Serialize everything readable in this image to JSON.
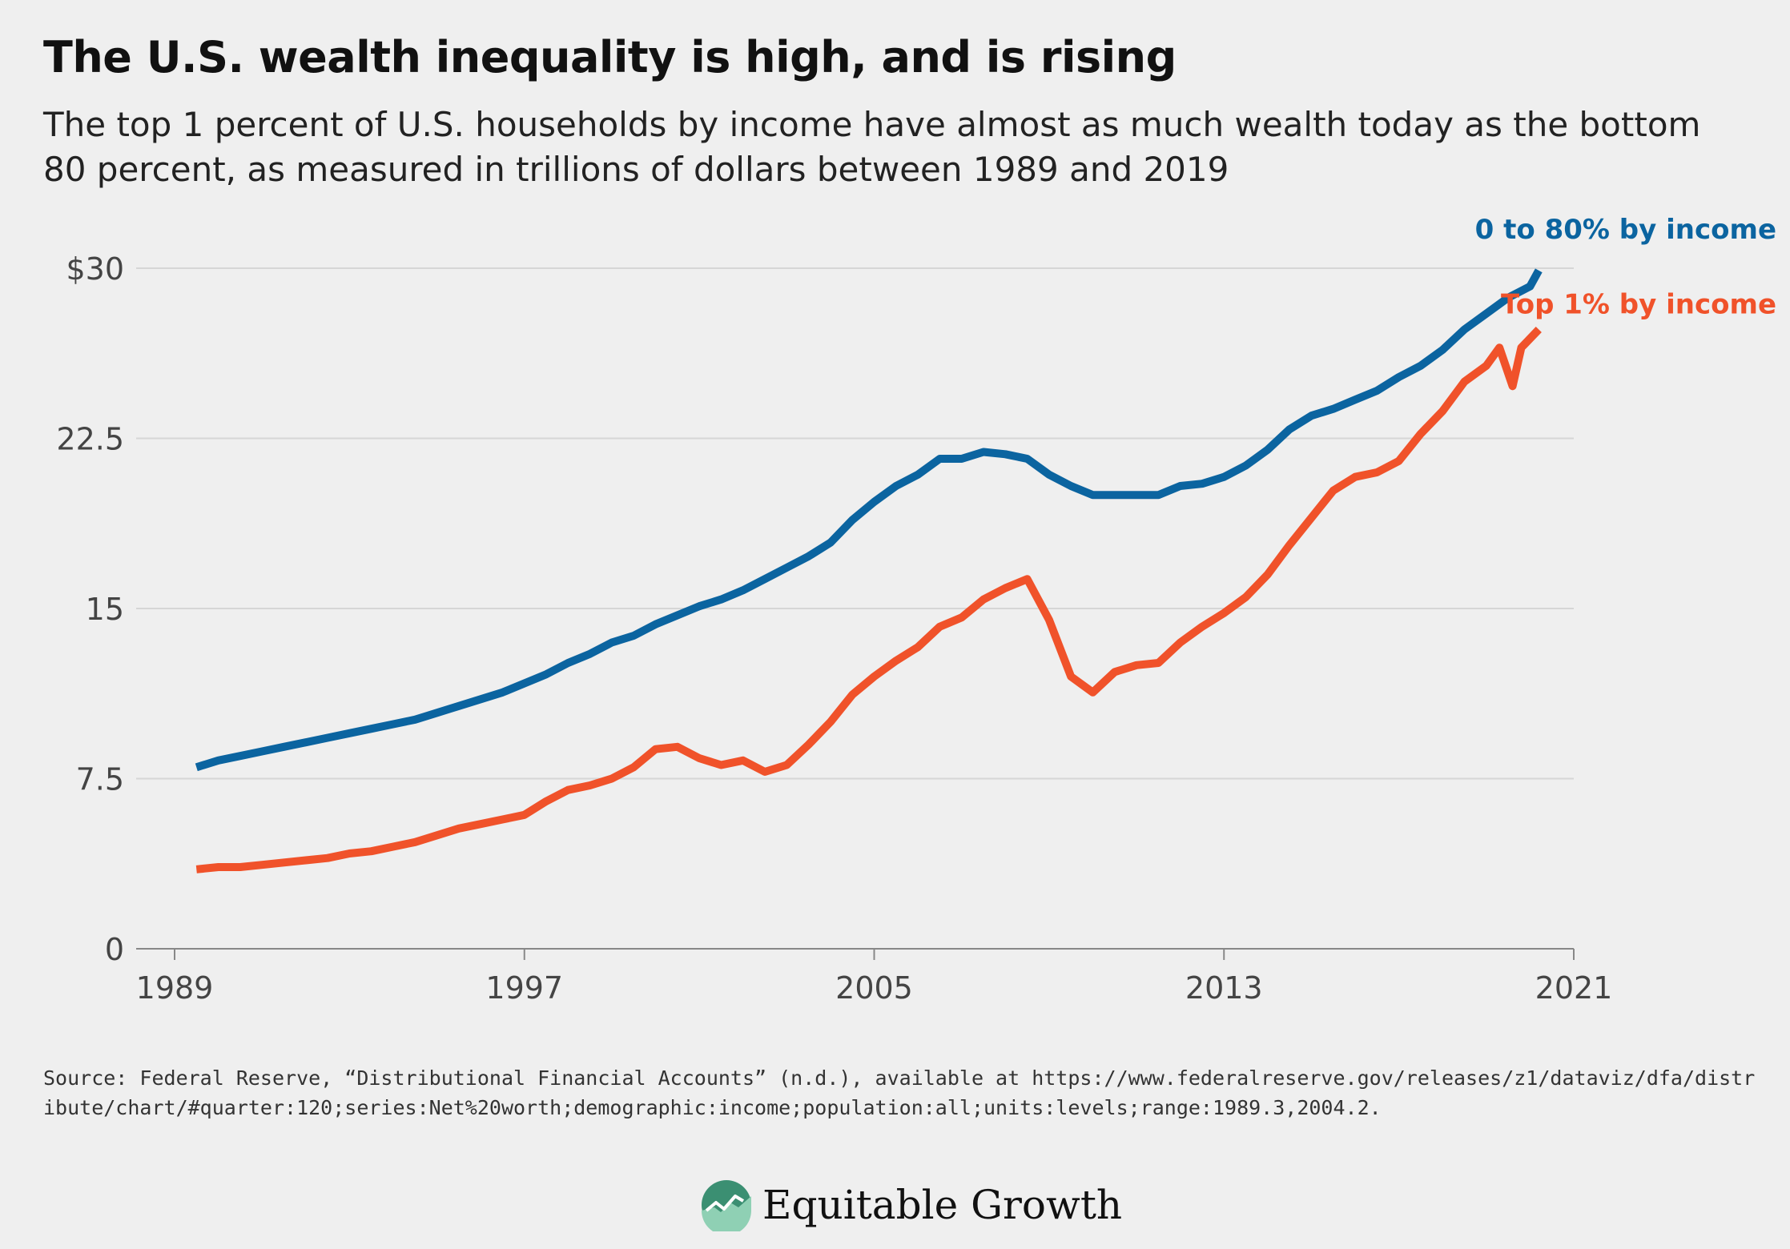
{
  "title": "The U.S. wealth inequality is high, and is rising",
  "subtitle": "The top 1 percent of U.S. households by income have almost as much wealth today as the bottom 80 percent, as measured in trillions of dollars between 1989 and 2019",
  "source": "Source: Federal Reserve, “Distributional Financial Accounts” (n.d.), available at https://www.federalreserve.gov/releases/z1/dataviz/dfa/distribute/chart/#quarter:120;series:Net%20worth;demographic:income;population:all;units:levels;range:1989.3,2004.2.",
  "logo": {
    "text": "Equitable Growth"
  },
  "colors": {
    "bottom80": "#0b64a0",
    "top1": "#f0522a",
    "grid": "#d6d6d6",
    "axis": "#888888"
  },
  "chart_data": {
    "type": "line",
    "title": "",
    "xlabel": "",
    "ylabel": "",
    "xlim": [
      1989,
      2021
    ],
    "ylim": [
      0,
      30
    ],
    "grid": true,
    "x_ticks": [
      {
        "value": 1989,
        "label": "1989"
      },
      {
        "value": 1997,
        "label": "1997"
      },
      {
        "value": 2005,
        "label": "2005"
      },
      {
        "value": 2013,
        "label": "2013"
      },
      {
        "value": 2021,
        "label": "2021"
      }
    ],
    "y_ticks": [
      {
        "value": 0,
        "label": "0"
      },
      {
        "value": 7.5,
        "label": "7.5"
      },
      {
        "value": 15,
        "label": "15"
      },
      {
        "value": 22.5,
        "label": "22.5"
      },
      {
        "value": 30,
        "label": "$30"
      }
    ],
    "series": [
      {
        "name": "0 to 80% by income",
        "color": "#0b64a0",
        "points": [
          [
            1989.5,
            8.0
          ],
          [
            1990.0,
            8.3
          ],
          [
            1990.5,
            8.5
          ],
          [
            1991.0,
            8.7
          ],
          [
            1991.5,
            8.9
          ],
          [
            1992.0,
            9.1
          ],
          [
            1992.5,
            9.3
          ],
          [
            1993.0,
            9.5
          ],
          [
            1993.5,
            9.7
          ],
          [
            1994.0,
            9.9
          ],
          [
            1994.5,
            10.1
          ],
          [
            1995.0,
            10.4
          ],
          [
            1995.5,
            10.7
          ],
          [
            1996.0,
            11.0
          ],
          [
            1996.5,
            11.3
          ],
          [
            1997.0,
            11.7
          ],
          [
            1997.5,
            12.1
          ],
          [
            1998.0,
            12.6
          ],
          [
            1998.5,
            13.0
          ],
          [
            1999.0,
            13.5
          ],
          [
            1999.5,
            13.8
          ],
          [
            2000.0,
            14.3
          ],
          [
            2000.5,
            14.7
          ],
          [
            2001.0,
            15.1
          ],
          [
            2001.5,
            15.4
          ],
          [
            2002.0,
            15.8
          ],
          [
            2002.5,
            16.3
          ],
          [
            2003.0,
            16.8
          ],
          [
            2003.5,
            17.3
          ],
          [
            2004.0,
            17.9
          ],
          [
            2004.5,
            18.9
          ],
          [
            2005.0,
            19.7
          ],
          [
            2005.5,
            20.4
          ],
          [
            2006.0,
            20.9
          ],
          [
            2006.5,
            21.6
          ],
          [
            2007.0,
            21.6
          ],
          [
            2007.5,
            21.9
          ],
          [
            2008.0,
            21.8
          ],
          [
            2008.5,
            21.6
          ],
          [
            2009.0,
            20.9
          ],
          [
            2009.5,
            20.4
          ],
          [
            2010.0,
            20.0
          ],
          [
            2010.5,
            20.0
          ],
          [
            2011.0,
            20.0
          ],
          [
            2011.5,
            20.0
          ],
          [
            2012.0,
            20.4
          ],
          [
            2012.5,
            20.5
          ],
          [
            2013.0,
            20.8
          ],
          [
            2013.5,
            21.3
          ],
          [
            2014.0,
            22.0
          ],
          [
            2014.5,
            22.9
          ],
          [
            2015.0,
            23.5
          ],
          [
            2015.5,
            23.8
          ],
          [
            2016.0,
            24.2
          ],
          [
            2016.5,
            24.6
          ],
          [
            2017.0,
            25.2
          ],
          [
            2017.5,
            25.7
          ],
          [
            2018.0,
            26.4
          ],
          [
            2018.5,
            27.3
          ],
          [
            2019.0,
            28.0
          ],
          [
            2019.5,
            28.7
          ],
          [
            2020.0,
            29.2
          ],
          [
            2020.2,
            29.9
          ]
        ]
      },
      {
        "name": "Top 1% by income",
        "color": "#f0522a",
        "points": [
          [
            1989.5,
            3.5
          ],
          [
            1990.0,
            3.6
          ],
          [
            1990.5,
            3.6
          ],
          [
            1991.0,
            3.7
          ],
          [
            1991.5,
            3.8
          ],
          [
            1992.0,
            3.9
          ],
          [
            1992.5,
            4.0
          ],
          [
            1993.0,
            4.2
          ],
          [
            1993.5,
            4.3
          ],
          [
            1994.0,
            4.5
          ],
          [
            1994.5,
            4.7
          ],
          [
            1995.0,
            5.0
          ],
          [
            1995.5,
            5.3
          ],
          [
            1996.0,
            5.5
          ],
          [
            1996.5,
            5.7
          ],
          [
            1997.0,
            5.9
          ],
          [
            1997.5,
            6.5
          ],
          [
            1998.0,
            7.0
          ],
          [
            1998.5,
            7.2
          ],
          [
            1999.0,
            7.5
          ],
          [
            1999.5,
            8.0
          ],
          [
            2000.0,
            8.8
          ],
          [
            2000.5,
            8.9
          ],
          [
            2001.0,
            8.4
          ],
          [
            2001.5,
            8.1
          ],
          [
            2002.0,
            8.3
          ],
          [
            2002.5,
            7.8
          ],
          [
            2003.0,
            8.1
          ],
          [
            2003.5,
            9.0
          ],
          [
            2004.0,
            10.0
          ],
          [
            2004.5,
            11.2
          ],
          [
            2005.0,
            12.0
          ],
          [
            2005.5,
            12.7
          ],
          [
            2006.0,
            13.3
          ],
          [
            2006.5,
            14.2
          ],
          [
            2007.0,
            14.6
          ],
          [
            2007.5,
            15.4
          ],
          [
            2008.0,
            15.9
          ],
          [
            2008.5,
            16.3
          ],
          [
            2009.0,
            14.5
          ],
          [
            2009.5,
            12.0
          ],
          [
            2010.0,
            11.3
          ],
          [
            2010.5,
            12.2
          ],
          [
            2011.0,
            12.5
          ],
          [
            2011.5,
            12.6
          ],
          [
            2012.0,
            13.5
          ],
          [
            2012.5,
            14.2
          ],
          [
            2013.0,
            14.8
          ],
          [
            2013.5,
            15.5
          ],
          [
            2014.0,
            16.5
          ],
          [
            2014.5,
            17.8
          ],
          [
            2015.0,
            19.0
          ],
          [
            2015.5,
            20.2
          ],
          [
            2016.0,
            20.8
          ],
          [
            2016.5,
            21.0
          ],
          [
            2017.0,
            21.5
          ],
          [
            2017.5,
            22.7
          ],
          [
            2018.0,
            23.7
          ],
          [
            2018.5,
            25.0
          ],
          [
            2019.0,
            25.7
          ],
          [
            2019.3,
            26.5
          ],
          [
            2019.6,
            24.8
          ],
          [
            2019.8,
            26.5
          ],
          [
            2020.2,
            27.3
          ]
        ]
      }
    ]
  }
}
